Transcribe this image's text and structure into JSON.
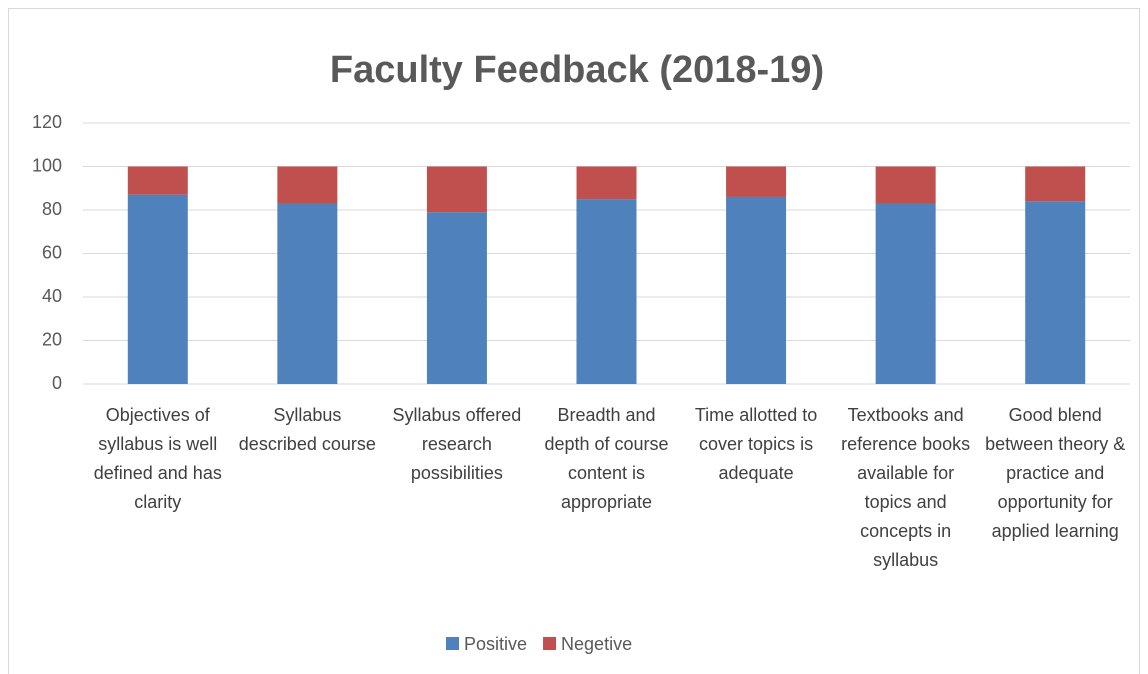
{
  "chart_data": {
    "type": "stacked_bar",
    "title": "Faculty Feedback (2018-19)",
    "categories": [
      "Objectives of syllabus is well defined and has clarity",
      "Syllabus described course",
      "Syllabus offered research possibilities",
      "Breadth and depth of course content is appropriate",
      "Time allotted to cover topics is adequate",
      "Textbooks and reference books available for topics and concepts in syllabus",
      "Good blend between theory & practice and opportunity for applied learning"
    ],
    "series": [
      {
        "name": "Positive",
        "color": "#4f81bd",
        "values": [
          87,
          83,
          79,
          85,
          86,
          83,
          84
        ]
      },
      {
        "name": "Negetive",
        "color": "#c0504d",
        "values": [
          13,
          17,
          21,
          15,
          14,
          17,
          16
        ]
      }
    ],
    "ylim": [
      0,
      120
    ],
    "yticks": [
      0,
      20,
      40,
      60,
      80,
      100,
      120
    ],
    "grid": true,
    "legend": "bottom"
  }
}
